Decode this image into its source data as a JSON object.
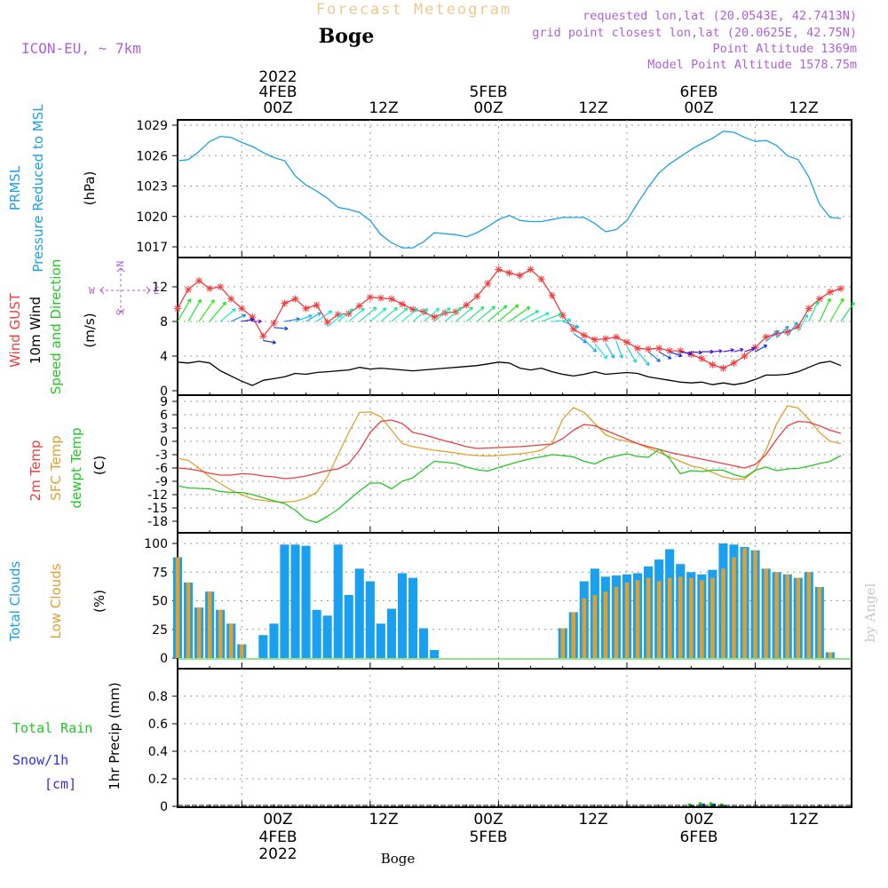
{
  "header": {
    "title": "Forecast Meteogram",
    "station": "Boge",
    "model": "ICON-EU, ~ 7km",
    "requested": "requested lon,lat (20.0543E, 42.7413N)",
    "grid_point": "grid point closest lon,lat (20.0625E, 42.75N)",
    "point_alt": "Point Altitude 1369m",
    "model_alt": "Model Point Altitude 1578.75m",
    "footer_station": "Boge",
    "watermark": "by Angel"
  },
  "time_axis": {
    "top_year": "2022",
    "top_dates": [
      "4FEB",
      "5FEB",
      "6FEB"
    ],
    "hour_labels": [
      "00Z",
      "12Z",
      "00Z",
      "12Z",
      "00Z",
      "12Z"
    ],
    "bottom_dates": [
      "4FEB",
      "5FEB",
      "6FEB"
    ],
    "bottom_year": "2022",
    "start_hour": -6,
    "end_hour": 57
  },
  "panels": {
    "pressure": {
      "label1": "PRMSL",
      "label2": "Pressure Reduced to MSL",
      "unit": "(hPa)",
      "ticks": [
        "1029",
        "1026",
        "1023",
        "1020",
        "1017"
      ]
    },
    "wind": {
      "label_gust": "Wind GUST",
      "label_10m": "10m Wind",
      "label_dir": "Speed and Direction",
      "unit": "(m/s)",
      "ticks": [
        "12",
        "8",
        "4",
        "0"
      ],
      "compass_n": "N",
      "compass_s": "S",
      "compass_w": "W",
      "compass_e": "E"
    },
    "temp": {
      "label_2m": "2m Temp",
      "label_sfc": "SFC Temp",
      "label_dew": "dewpt Temp",
      "unit": "(C)",
      "ticks": [
        "9",
        "6",
        "3",
        "0",
        "-3",
        "-6",
        "-9",
        "-12",
        "-15",
        "-18"
      ]
    },
    "clouds": {
      "label_total": "Total Clouds",
      "label_low": "Low Clouds",
      "unit": "(%)",
      "ticks": [
        "100",
        "75",
        "50",
        "25",
        "0"
      ]
    },
    "precip": {
      "label_rain": "Total  Rain",
      "label_snow": "Snow/1h",
      "label_cm": "[cm]",
      "unit": "1hr Precip (mm)",
      "ticks": [
        "0.8",
        "0.6",
        "0.4",
        "0.2",
        "0"
      ]
    }
  },
  "colors": {
    "pressure": "#1ca0e6",
    "gust": "#f03c3c",
    "wind10": "#000000",
    "t2m": "#e84040",
    "tsfc": "#e0a030",
    "tdew": "#22c822",
    "cloud_total": "#1aa0ee",
    "cloud_low": "#e0a030",
    "rain": "#22c822",
    "snow": "#3030e0",
    "purple": "#b060d8",
    "title_gold": "#f0c890"
  },
  "chart_data": [
    {
      "type": "line",
      "title": "PRMSL Pressure Reduced to MSL",
      "ylabel": "(hPa)",
      "ylim": [
        1016,
        1029.5
      ],
      "x": [
        -6,
        -5,
        -4,
        -3,
        -2,
        -1,
        0,
        1,
        2,
        3,
        4,
        5,
        6,
        7,
        8,
        9,
        10,
        11,
        12,
        13,
        14,
        15,
        16,
        17,
        18,
        19,
        20,
        21,
        22,
        23,
        24,
        25,
        26,
        27,
        28,
        29,
        30,
        31,
        32,
        33,
        34,
        35,
        36,
        37,
        38,
        39,
        40,
        41,
        42,
        43,
        44,
        45,
        46,
        47,
        48,
        49,
        50,
        51,
        52,
        53,
        54,
        55,
        56
      ],
      "series": [
        {
          "name": "PRMSL",
          "values": [
            1025.5,
            1025.6,
            1026.4,
            1027.4,
            1027.9,
            1027.8,
            1027.3,
            1026.9,
            1026.3,
            1025.8,
            1025.5,
            1024.0,
            1023.1,
            1022.5,
            1021.8,
            1020.9,
            1020.7,
            1020.4,
            1019.6,
            1018.2,
            1017.4,
            1016.9,
            1016.9,
            1017.5,
            1018.4,
            1018.3,
            1018.2,
            1018.0,
            1018.4,
            1019.0,
            1019.7,
            1020.1,
            1019.6,
            1019.5,
            1019.5,
            1019.7,
            1019.9,
            1019.9,
            1019.9,
            1019.3,
            1018.5,
            1018.7,
            1019.6,
            1021.3,
            1022.9,
            1024.3,
            1025.2,
            1025.9,
            1026.6,
            1027.2,
            1027.7,
            1028.4,
            1028.3,
            1027.8,
            1027.4,
            1027.5,
            1027.0,
            1026.0,
            1025.6,
            1023.9,
            1021.2,
            1019.9,
            1019.8
          ]
        }
      ]
    },
    {
      "type": "line",
      "title": "Wind GUST / 10m Wind Speed and Direction",
      "ylabel": "(m/s)",
      "ylim": [
        0,
        15
      ],
      "x": [
        -6,
        -5,
        -4,
        -3,
        -2,
        -1,
        0,
        1,
        2,
        3,
        4,
        5,
        6,
        7,
        8,
        9,
        10,
        11,
        12,
        13,
        14,
        15,
        16,
        17,
        18,
        19,
        20,
        21,
        22,
        23,
        24,
        25,
        26,
        27,
        28,
        29,
        30,
        31,
        32,
        33,
        34,
        35,
        36,
        37,
        38,
        39,
        40,
        41,
        42,
        43,
        44,
        45,
        46,
        47,
        48,
        49,
        50,
        51,
        52,
        53,
        54,
        55,
        56
      ],
      "series": [
        {
          "name": "Wind GUST",
          "values": [
            9.5,
            11.7,
            12.7,
            11.8,
            12.0,
            10.6,
            9.5,
            8.5,
            6.3,
            7.8,
            10.1,
            10.6,
            9.5,
            9.9,
            7.9,
            8.8,
            8.9,
            9.8,
            10.8,
            10.7,
            10.6,
            10.0,
            9.4,
            9.1,
            8.5,
            9.0,
            9.1,
            9.9,
            10.9,
            12.4,
            14.0,
            13.6,
            13.3,
            14.0,
            12.9,
            11.0,
            8.7,
            7.1,
            6.4,
            5.9,
            6.0,
            6.2,
            5.6,
            4.9,
            4.8,
            4.9,
            4.6,
            4.6,
            4.2,
            3.7,
            3.0,
            2.6,
            3.2,
            4.0,
            5.0,
            6.2,
            6.6,
            6.8,
            7.4,
            9.5,
            10.6,
            11.4,
            11.8
          ]
        },
        {
          "name": "10m Wind",
          "values": [
            3.3,
            3.2,
            3.4,
            3.2,
            2.3,
            1.7,
            1.1,
            0.6,
            1.2,
            1.4,
            1.6,
            2.0,
            1.9,
            2.1,
            2.2,
            2.3,
            2.4,
            2.7,
            2.5,
            2.6,
            2.5,
            2.4,
            2.3,
            2.4,
            2.5,
            2.6,
            2.7,
            2.8,
            2.9,
            3.1,
            3.3,
            3.2,
            2.6,
            2.4,
            2.6,
            2.2,
            1.9,
            1.7,
            1.9,
            2.2,
            1.9,
            2.0,
            2.1,
            2.0,
            1.6,
            1.4,
            1.2,
            1.0,
            0.9,
            1.0,
            0.7,
            0.9,
            0.7,
            0.9,
            1.3,
            1.8,
            1.8,
            1.9,
            2.2,
            2.7,
            3.2,
            3.4,
            2.9
          ]
        }
      ],
      "arrow_dir_deg": [
        210,
        210,
        215,
        220,
        230,
        245,
        260,
        270,
        280,
        275,
        260,
        250,
        240,
        235,
        230,
        230,
        230,
        230,
        230,
        230,
        230,
        230,
        230,
        230,
        230,
        230,
        230,
        230,
        230,
        230,
        230,
        235,
        240,
        245,
        250,
        265,
        290,
        305,
        315,
        320,
        330,
        340,
        330,
        320,
        310,
        300,
        290,
        280,
        275,
        270,
        265,
        260,
        255,
        250,
        240,
        230,
        225,
        215,
        210,
        205,
        205,
        210,
        215
      ]
    },
    {
      "type": "line",
      "title": "2m Temp / SFC Temp / dewpt Temp",
      "ylabel": "(C)",
      "ylim": [
        -19.5,
        10
      ],
      "x": [
        -6,
        -5,
        -4,
        -3,
        -2,
        -1,
        0,
        1,
        2,
        3,
        4,
        5,
        6,
        7,
        8,
        9,
        10,
        11,
        12,
        13,
        14,
        15,
        16,
        17,
        18,
        19,
        20,
        21,
        22,
        23,
        24,
        25,
        26,
        27,
        28,
        29,
        30,
        31,
        32,
        33,
        34,
        35,
        36,
        37,
        38,
        39,
        40,
        41,
        42,
        43,
        44,
        45,
        46,
        47,
        48,
        49,
        50,
        51,
        52,
        53,
        54,
        55,
        56
      ],
      "series": [
        {
          "name": "2m Temp",
          "values": [
            -6.0,
            -6.2,
            -6.6,
            -7.2,
            -7.6,
            -7.6,
            -7.3,
            -7.4,
            -7.8,
            -8.0,
            -8.4,
            -8.2,
            -7.8,
            -7.2,
            -6.6,
            -6.2,
            -5.0,
            -2.0,
            2.0,
            4.5,
            4.8,
            4.0,
            2.0,
            1.5,
            0.8,
            0.1,
            -0.5,
            -1.2,
            -1.6,
            -1.5,
            -1.4,
            -1.3,
            -1.2,
            -1.0,
            -0.8,
            -0.6,
            0.6,
            2.5,
            3.8,
            3.5,
            2.5,
            1.5,
            0.5,
            -0.5,
            -1.2,
            -1.8,
            -2.5,
            -3.0,
            -3.5,
            -4.0,
            -4.5,
            -5.0,
            -5.5,
            -6.0,
            -5.2,
            -3.0,
            0.5,
            3.5,
            4.5,
            4.3,
            3.5,
            2.5,
            1.8
          ]
        },
        {
          "name": "SFC Temp",
          "values": [
            -3.8,
            -4.3,
            -6.0,
            -8.0,
            -9.5,
            -11.0,
            -12.0,
            -13.0,
            -13.3,
            -13.6,
            -13.7,
            -13.5,
            -12.8,
            -11.5,
            -8.0,
            -3.0,
            2.0,
            6.5,
            6.6,
            5.5,
            2.5,
            -0.5,
            -1.2,
            -1.6,
            -2.0,
            -2.3,
            -2.6,
            -3.0,
            -3.2,
            -3.3,
            -3.2,
            -3.0,
            -2.8,
            -2.5,
            -2.0,
            -0.5,
            5.0,
            7.6,
            6.5,
            4.0,
            1.5,
            0.5,
            0.0,
            -0.5,
            -1.5,
            -2.5,
            -3.5,
            -4.5,
            -5.5,
            -6.0,
            -7.0,
            -8.0,
            -8.5,
            -8.5,
            -6.5,
            -2.0,
            4.0,
            8.0,
            7.5,
            5.0,
            2.0,
            0.0,
            -0.5
          ]
        },
        {
          "name": "dewpt Temp",
          "values": [
            -10.0,
            -10.5,
            -10.6,
            -10.7,
            -11.3,
            -11.5,
            -11.5,
            -12.0,
            -12.7,
            -13.4,
            -14.0,
            -15.5,
            -17.6,
            -18.3,
            -16.9,
            -15.3,
            -13.2,
            -11.2,
            -9.4,
            -9.4,
            -10.7,
            -9.0,
            -8.2,
            -6.3,
            -4.5,
            -4.7,
            -5.0,
            -5.8,
            -6.4,
            -6.7,
            -5.9,
            -5.2,
            -4.5,
            -3.9,
            -3.5,
            -3.0,
            -3.2,
            -3.5,
            -4.5,
            -5.1,
            -3.9,
            -3.3,
            -2.8,
            -3.4,
            -3.6,
            -1.8,
            -3.9,
            -7.3,
            -6.6,
            -6.8,
            -6.5,
            -6.5,
            -7.5,
            -8.1,
            -6.5,
            -5.8,
            -6.6,
            -6.2,
            -6.1,
            -5.6,
            -5.0,
            -4.5,
            -3.2
          ]
        }
      ]
    },
    {
      "type": "bar",
      "title": "Total Clouds / Low Clouds",
      "ylabel": "(%)",
      "ylim": [
        0,
        105
      ],
      "x": [
        -6,
        -5,
        -4,
        -3,
        -2,
        -1,
        0,
        1,
        2,
        3,
        4,
        5,
        6,
        7,
        8,
        9,
        10,
        11,
        12,
        13,
        14,
        15,
        16,
        17,
        18,
        19,
        20,
        21,
        22,
        23,
        24,
        25,
        26,
        27,
        28,
        29,
        30,
        31,
        32,
        33,
        34,
        35,
        36,
        37,
        38,
        39,
        40,
        41,
        42,
        43,
        44,
        45,
        46,
        47,
        48,
        49,
        50,
        51,
        52,
        53,
        54,
        55,
        56
      ],
      "series": [
        {
          "name": "Total Clouds",
          "values": [
            88,
            66,
            44,
            58,
            42,
            30,
            12,
            0,
            20,
            30,
            99,
            99,
            98,
            42,
            37,
            99,
            55,
            78,
            67,
            30,
            43,
            74,
            70,
            26,
            7,
            0,
            0,
            0,
            0,
            0,
            0,
            0,
            0,
            0,
            0,
            0,
            26,
            40,
            67,
            78,
            71,
            72,
            73,
            74,
            80,
            86,
            95,
            82,
            75,
            73,
            77,
            100,
            99,
            97,
            94,
            78,
            75,
            73,
            70,
            75,
            62,
            5,
            0
          ]
        },
        {
          "name": "Low Clouds",
          "values": [
            88,
            66,
            44,
            58,
            42,
            30,
            12,
            0,
            0,
            0,
            0,
            0,
            0,
            0,
            0,
            0,
            0,
            0,
            0,
            0,
            0,
            0,
            0,
            0,
            0,
            0,
            0,
            0,
            0,
            0,
            0,
            0,
            0,
            0,
            0,
            0,
            26,
            40,
            52,
            55,
            58,
            62,
            66,
            68,
            70,
            67,
            70,
            71,
            70,
            68,
            70,
            78,
            88,
            96,
            94,
            78,
            75,
            73,
            70,
            75,
            62,
            5,
            0
          ]
        }
      ]
    },
    {
      "type": "bar",
      "title": "Total Rain / Snow/1h",
      "ylabel": "1hr Precip (mm)",
      "ylim": [
        0,
        1.0
      ],
      "x": [
        42,
        43,
        44,
        45
      ],
      "series": [
        {
          "name": "Total Rain",
          "values": [
            0.02,
            0.03,
            0.03,
            0.02
          ]
        },
        {
          "name": "Snow/1h",
          "values": [
            0.01,
            0.02,
            0.02,
            0.01
          ]
        }
      ]
    }
  ]
}
